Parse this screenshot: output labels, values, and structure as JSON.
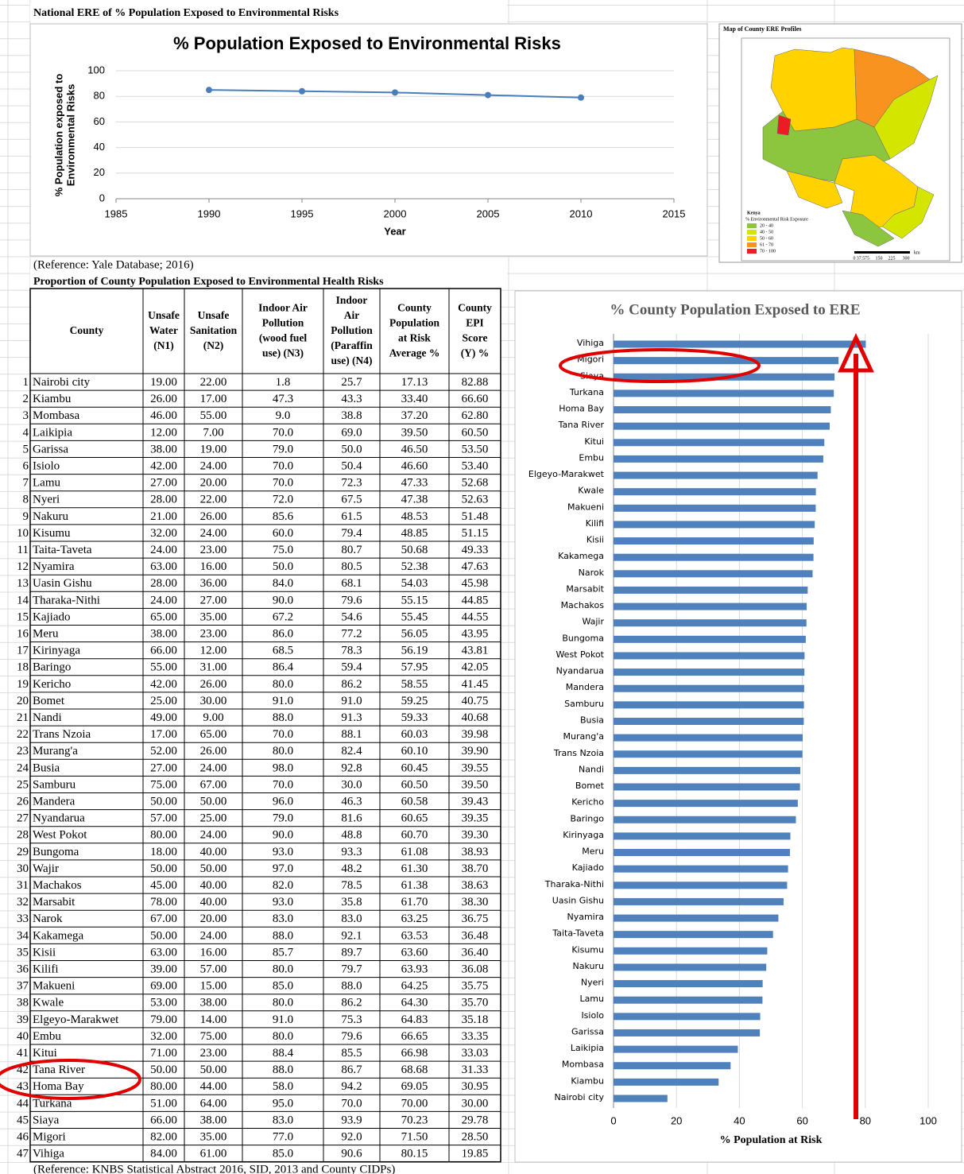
{
  "headings": {
    "national": "National ERE of % Population Exposed to Environmental Risks",
    "national_reference": "(Reference: Yale Database; 2016)",
    "county": "Proportion of County Population Exposed to Environmental Health Risks",
    "county_reference": "(Reference: KNBS Statistical Abstract 2016, SID, 2013 and County CIDPs)"
  },
  "map": {
    "title": "Map of County ERE Profiles",
    "country": "Kenya",
    "legend_title": "% Environmental Risk Exposure",
    "legend": [
      {
        "label": "20 - 40",
        "color": "#8cc63f"
      },
      {
        "label": "40 - 50",
        "color": "#d4e600"
      },
      {
        "label": "50 - 60",
        "color": "#ffd200"
      },
      {
        "label": "61 - 70",
        "color": "#f7931e"
      },
      {
        "label": "70 - 100",
        "color": "#ed1c24"
      }
    ],
    "scale": [
      "0",
      "37.5",
      "75",
      "150",
      "225",
      "300"
    ],
    "scale_unit": "km"
  },
  "table": {
    "header": [
      [
        "County"
      ],
      [
        "Unsafe",
        "Water",
        "(N1)"
      ],
      [
        "Unsafe",
        "Sanitation",
        "(N2)"
      ],
      [
        "Indoor Air",
        "Pollution",
        "(wood fuel",
        "use) (N3)"
      ],
      [
        "Indoor",
        "Air",
        "Pollution",
        "(Paraffin",
        "use) (N4)"
      ],
      [
        "County",
        "Population",
        "at Risk",
        "Average %"
      ],
      [
        "County",
        "EPI",
        "Score",
        "(Y) %"
      ]
    ],
    "rows": [
      [
        1,
        "Nairobi city",
        "19.00",
        "22.00",
        "1.8",
        "25.7",
        "17.13",
        "82.88"
      ],
      [
        2,
        "Kiambu",
        "26.00",
        "17.00",
        "47.3",
        "43.3",
        "33.40",
        "66.60"
      ],
      [
        3,
        "Mombasa",
        "46.00",
        "55.00",
        "9.0",
        "38.8",
        "37.20",
        "62.80"
      ],
      [
        4,
        "Laikipia",
        "12.00",
        "7.00",
        "70.0",
        "69.0",
        "39.50",
        "60.50"
      ],
      [
        5,
        "Garissa",
        "38.00",
        "19.00",
        "79.0",
        "50.0",
        "46.50",
        "53.50"
      ],
      [
        6,
        "Isiolo",
        "42.00",
        "24.00",
        "70.0",
        "50.4",
        "46.60",
        "53.40"
      ],
      [
        7,
        "Lamu",
        "27.00",
        "20.00",
        "70.0",
        "72.3",
        "47.33",
        "52.68"
      ],
      [
        8,
        "Nyeri",
        "28.00",
        "22.00",
        "72.0",
        "67.5",
        "47.38",
        "52.63"
      ],
      [
        9,
        "Nakuru",
        "21.00",
        "26.00",
        "85.6",
        "61.5",
        "48.53",
        "51.48"
      ],
      [
        10,
        "Kisumu",
        "32.00",
        "24.00",
        "60.0",
        "79.4",
        "48.85",
        "51.15"
      ],
      [
        11,
        "Taita-Taveta",
        "24.00",
        "23.00",
        "75.0",
        "80.7",
        "50.68",
        "49.33"
      ],
      [
        12,
        "Nyamira",
        "63.00",
        "16.00",
        "50.0",
        "80.5",
        "52.38",
        "47.63"
      ],
      [
        13,
        "Uasin Gishu",
        "28.00",
        "36.00",
        "84.0",
        "68.1",
        "54.03",
        "45.98"
      ],
      [
        14,
        "Tharaka-Nithi",
        "24.00",
        "27.00",
        "90.0",
        "79.6",
        "55.15",
        "44.85"
      ],
      [
        15,
        "Kajiado",
        "65.00",
        "35.00",
        "67.2",
        "54.6",
        "55.45",
        "44.55"
      ],
      [
        16,
        "Meru",
        "38.00",
        "23.00",
        "86.0",
        "77.2",
        "56.05",
        "43.95"
      ],
      [
        17,
        "Kirinyaga",
        "66.00",
        "12.00",
        "68.5",
        "78.3",
        "56.19",
        "43.81"
      ],
      [
        18,
        "Baringo",
        "55.00",
        "31.00",
        "86.4",
        "59.4",
        "57.95",
        "42.05"
      ],
      [
        19,
        "Kericho",
        "42.00",
        "26.00",
        "80.0",
        "86.2",
        "58.55",
        "41.45"
      ],
      [
        20,
        "Bomet",
        "25.00",
        "30.00",
        "91.0",
        "91.0",
        "59.25",
        "40.75"
      ],
      [
        21,
        "Nandi",
        "49.00",
        "9.00",
        "88.0",
        "91.3",
        "59.33",
        "40.68"
      ],
      [
        22,
        "Trans Nzoia",
        "17.00",
        "65.00",
        "70.0",
        "88.1",
        "60.03",
        "39.98"
      ],
      [
        23,
        "Murang'a",
        "52.00",
        "26.00",
        "80.0",
        "82.4",
        "60.10",
        "39.90"
      ],
      [
        24,
        "Busia",
        "27.00",
        "24.00",
        "98.0",
        "92.8",
        "60.45",
        "39.55"
      ],
      [
        25,
        "Samburu",
        "75.00",
        "67.00",
        "70.0",
        "30.0",
        "60.50",
        "39.50"
      ],
      [
        26,
        "Mandera",
        "50.00",
        "50.00",
        "96.0",
        "46.3",
        "60.58",
        "39.43"
      ],
      [
        27,
        "Nyandarua",
        "57.00",
        "25.00",
        "79.0",
        "81.6",
        "60.65",
        "39.35"
      ],
      [
        28,
        "West Pokot",
        "80.00",
        "24.00",
        "90.0",
        "48.8",
        "60.70",
        "39.30"
      ],
      [
        29,
        "Bungoma",
        "18.00",
        "40.00",
        "93.0",
        "93.3",
        "61.08",
        "38.93"
      ],
      [
        30,
        "Wajir",
        "50.00",
        "50.00",
        "97.0",
        "48.2",
        "61.30",
        "38.70"
      ],
      [
        31,
        "Machakos",
        "45.00",
        "40.00",
        "82.0",
        "78.5",
        "61.38",
        "38.63"
      ],
      [
        32,
        "Marsabit",
        "78.00",
        "40.00",
        "93.0",
        "35.8",
        "61.70",
        "38.30"
      ],
      [
        33,
        "Narok",
        "67.00",
        "20.00",
        "83.0",
        "83.0",
        "63.25",
        "36.75"
      ],
      [
        34,
        "Kakamega",
        "50.00",
        "24.00",
        "88.0",
        "92.1",
        "63.53",
        "36.48"
      ],
      [
        35,
        "Kisii",
        "63.00",
        "16.00",
        "85.7",
        "89.7",
        "63.60",
        "36.40"
      ],
      [
        36,
        "Kilifi",
        "39.00",
        "57.00",
        "80.0",
        "79.7",
        "63.93",
        "36.08"
      ],
      [
        37,
        "Makueni",
        "69.00",
        "15.00",
        "85.0",
        "88.0",
        "64.25",
        "35.75"
      ],
      [
        38,
        "Kwale",
        "53.00",
        "38.00",
        "80.0",
        "86.2",
        "64.30",
        "35.70"
      ],
      [
        39,
        "Elgeyo-Marakwet",
        "79.00",
        "14.00",
        "91.0",
        "75.3",
        "64.83",
        "35.18"
      ],
      [
        40,
        "Embu",
        "32.00",
        "75.00",
        "80.0",
        "79.6",
        "66.65",
        "33.35"
      ],
      [
        41,
        "Kitui",
        "71.00",
        "23.00",
        "88.4",
        "85.5",
        "66.98",
        "33.03"
      ],
      [
        42,
        "Tana River",
        "50.00",
        "50.00",
        "88.0",
        "86.7",
        "68.68",
        "31.33"
      ],
      [
        43,
        "Homa Bay",
        "80.00",
        "44.00",
        "58.0",
        "94.2",
        "69.05",
        "30.95"
      ],
      [
        44,
        "Turkana",
        "51.00",
        "64.00",
        "95.0",
        "70.0",
        "70.00",
        "30.00"
      ],
      [
        45,
        "Siaya",
        "66.00",
        "38.00",
        "83.0",
        "93.9",
        "70.23",
        "29.78"
      ],
      [
        46,
        "Migori",
        "82.00",
        "35.00",
        "77.0",
        "92.0",
        "71.50",
        "28.50"
      ],
      [
        47,
        "Vihiga",
        "84.00",
        "61.00",
        "85.0",
        "90.6",
        "80.15",
        "19.85"
      ]
    ]
  },
  "chart_data": [
    {
      "type": "line",
      "title": "% Population Exposed to Environmental Risks",
      "x_label": "Year",
      "y_label": [
        "% Population exposed to",
        "Environmental Risks"
      ],
      "x": [
        1990,
        1995,
        2000,
        2005,
        2010
      ],
      "values": [
        85,
        84,
        83,
        81,
        79
      ],
      "color": "#4a7ebb",
      "xlim": [
        1985,
        2015
      ],
      "xticks": [
        1985,
        1990,
        1995,
        2000,
        2005,
        2010,
        2015
      ],
      "ylim": [
        0,
        100
      ],
      "yticks": [
        0,
        20,
        40,
        60,
        80,
        100
      ],
      "grid": true
    },
    {
      "type": "bar",
      "orientation": "horizontal",
      "title": "% County Population Exposed to ERE",
      "x_label": "% Population at Risk",
      "color": "#4f81bd",
      "categories": [
        "Vihiga",
        "Migori",
        "Siaya",
        "Turkana",
        "Homa Bay",
        "Tana River",
        "Kitui",
        "Embu",
        "Elgeyo-Marakwet",
        "Kwale",
        "Makueni",
        "Kilifi",
        "Kisii",
        "Kakamega",
        "Narok",
        "Marsabit",
        "Machakos",
        "Wajir",
        "Bungoma",
        "West Pokot",
        "Nyandarua",
        "Mandera",
        "Samburu",
        "Busia",
        "Murang'a",
        "Trans Nzoia",
        "Nandi",
        "Bomet",
        "Kericho",
        "Baringo",
        "Kirinyaga",
        "Meru",
        "Kajiado",
        "Tharaka-Nithi",
        "Uasin Gishu",
        "Nyamira",
        "Taita-Taveta",
        "Kisumu",
        "Nakuru",
        "Nyeri",
        "Lamu",
        "Isiolo",
        "Garissa",
        "Laikipia",
        "Mombasa",
        "Kiambu",
        "Nairobi city"
      ],
      "values": [
        80.15,
        71.5,
        70.23,
        70.0,
        69.05,
        68.68,
        66.98,
        66.65,
        64.83,
        64.3,
        64.25,
        63.93,
        63.6,
        63.53,
        63.25,
        61.7,
        61.38,
        61.3,
        61.08,
        60.7,
        60.65,
        60.58,
        60.5,
        60.45,
        60.1,
        60.03,
        59.33,
        59.25,
        58.55,
        57.95,
        56.19,
        56.05,
        55.45,
        55.15,
        54.03,
        52.38,
        50.68,
        48.85,
        48.53,
        47.38,
        47.33,
        46.6,
        46.5,
        39.5,
        37.2,
        33.4,
        17.13
      ],
      "xlim": [
        0,
        100
      ],
      "xticks": [
        0,
        20,
        40,
        60,
        80,
        100
      ],
      "grid": true
    }
  ]
}
